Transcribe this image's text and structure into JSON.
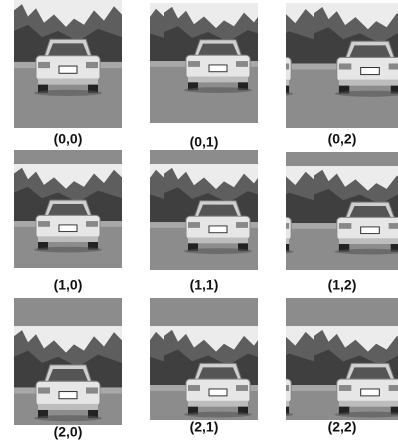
{
  "grid": {
    "labels": [
      [
        "(0,0)",
        "(0,1)",
        "(0,2)"
      ],
      [
        "(1,0)",
        "(1,1)",
        "(1,2)"
      ],
      [
        "(2,0)",
        "(2,1)",
        "(2,2)"
      ]
    ]
  }
}
